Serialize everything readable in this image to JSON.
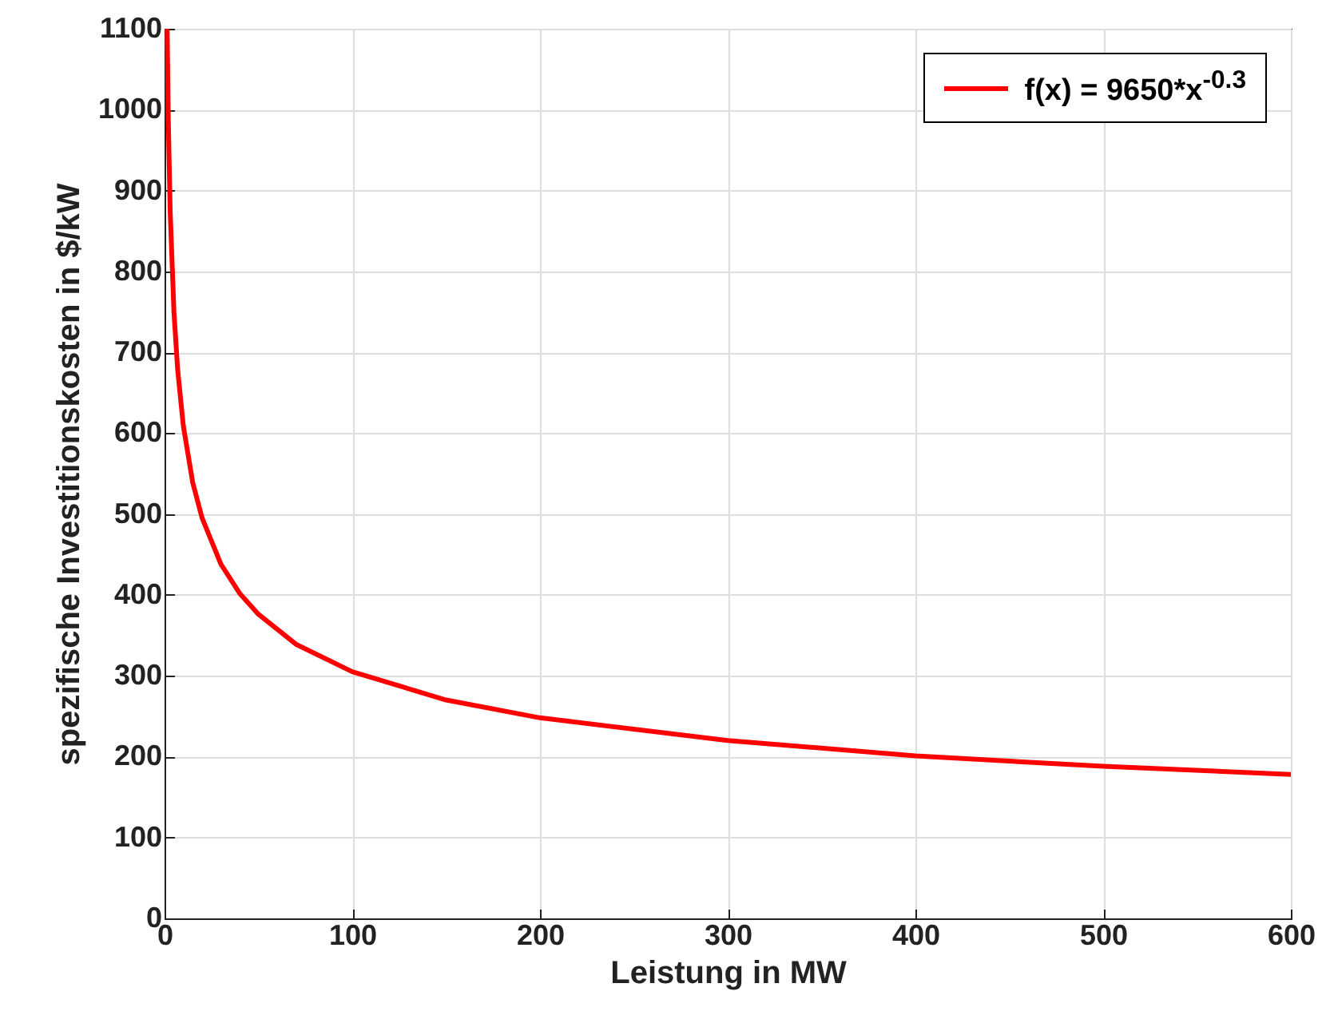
{
  "chart_data": {
    "type": "line",
    "xlabel": "Leistung in MW",
    "ylabel": "spezifische Investitionskosten in $/kW",
    "x": [
      1.4,
      2,
      3,
      5,
      7,
      10,
      15,
      20,
      30,
      40,
      50,
      70,
      100,
      150,
      200,
      300,
      400,
      500,
      600
    ],
    "series": [
      {
        "name": "f(x) = 9650*x$^{-0.3}$",
        "color": "#ff0000",
        "values": [
          1098,
          987,
          874,
          750,
          678,
          609,
          539,
          495,
          438,
          402,
          376,
          339,
          305,
          270,
          248,
          220,
          201,
          188,
          178
        ]
      }
    ],
    "xlim": [
      0,
      600
    ],
    "xticks": [
      0,
      100,
      200,
      300,
      400,
      500,
      600
    ],
    "ylim": [
      0,
      1100
    ],
    "yticks": [
      0,
      100,
      200,
      300,
      400,
      500,
      600,
      700,
      800,
      900,
      1000,
      1100
    ],
    "grid": true,
    "legend": "top right",
    "line_style": "solid",
    "marker": "none"
  }
}
